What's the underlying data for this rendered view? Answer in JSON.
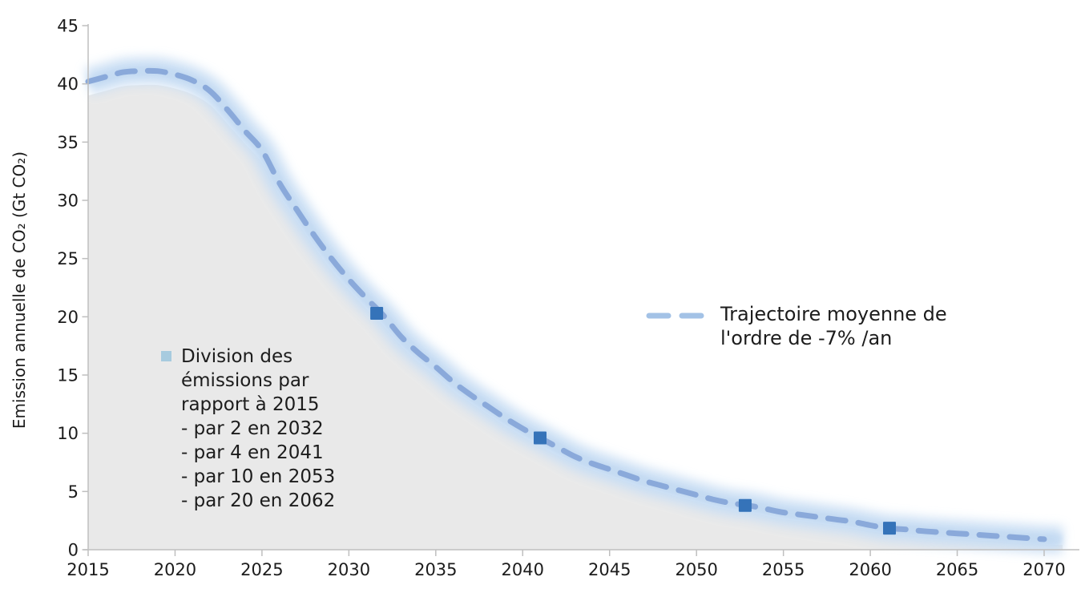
{
  "chart_data": {
    "type": "area",
    "title": "",
    "xlabel": "",
    "ylabel": "Emission annuelle de CO₂ (Gt CO₂)",
    "xlim": [
      2015,
      2070
    ],
    "ylim": [
      0,
      45
    ],
    "x_ticks": [
      2015,
      2020,
      2025,
      2030,
      2035,
      2040,
      2045,
      2050,
      2055,
      2060,
      2065,
      2070
    ],
    "y_ticks": [
      0,
      5,
      10,
      15,
      20,
      25,
      30,
      35,
      40,
      45
    ],
    "grid": false,
    "legend_position": "right-middle",
    "series": [
      {
        "name": "Trajectoire moyenne de l'ordre de -7% /an",
        "style": "dashed-line-with-glow",
        "x_start": 2015,
        "x_step": 1,
        "values": [
          40.2,
          40.6,
          41.0,
          41.1,
          41.1,
          40.8,
          40.3,
          39.4,
          37.8,
          36.0,
          34.3,
          31.5,
          29.2,
          27.0,
          25.0,
          23.2,
          21.6,
          20.1,
          18.3,
          16.9,
          15.7,
          14.4,
          13.3,
          12.3,
          11.3,
          10.4,
          9.6,
          8.8,
          8.0,
          7.4,
          6.9,
          6.4,
          5.9,
          5.5,
          5.1,
          4.7,
          4.3,
          4.0,
          3.8,
          3.5,
          3.2,
          3.0,
          2.8,
          2.6,
          2.4,
          2.1,
          1.85,
          1.75,
          1.6,
          1.5,
          1.4,
          1.3,
          1.2,
          1.1,
          1.0,
          0.9
        ]
      },
      {
        "name": "Emission annuelle (aire grisée)",
        "style": "area",
        "x_start": 2015,
        "x_step": 1,
        "values": [
          39.0,
          39.4,
          39.8,
          39.9,
          39.9,
          39.6,
          39.1,
          38.2,
          36.6,
          34.9,
          33.2,
          30.4,
          28.2,
          26.0,
          24.0,
          22.3,
          20.7,
          19.2,
          17.5,
          16.1,
          14.9,
          13.6,
          12.6,
          11.6,
          10.6,
          9.7,
          8.9,
          8.1,
          7.4,
          6.8,
          6.3,
          5.8,
          5.3,
          4.9,
          4.5,
          4.1,
          3.7,
          3.4,
          3.2,
          2.9,
          2.6,
          2.45,
          2.25,
          2.05,
          1.85,
          1.6,
          1.35,
          1.25,
          1.1,
          1.0,
          0.9,
          0.8,
          0.75,
          0.65,
          0.55,
          0.45
        ]
      }
    ],
    "markers": [
      {
        "year": 2031.6,
        "value": 20.3
      },
      {
        "year": 2041.0,
        "value": 9.6
      },
      {
        "year": 2052.8,
        "value": 3.8
      },
      {
        "year": 2061.1,
        "value": 1.85
      }
    ]
  },
  "legend": {
    "line1": "Trajectoire moyenne de",
    "line2": "l'ordre de -7% /an"
  },
  "annotation": {
    "lines": [
      "Division des",
      "émissions par",
      "rapport à 2015",
      "- par 2 en 2032",
      "- par 4 en 2041",
      "- par 10 en 2053",
      "- par 20 en 2062"
    ]
  },
  "colors": {
    "dash_line": "#8AA9DA",
    "glow_outer": "#CBDFF4",
    "glow_inner": "#BCD5F0",
    "marker": "#3573B9",
    "area_fill": "#E9E9E9",
    "axis": "#BFBFBF",
    "text": "#1C1C1C",
    "legend_swatch": "#A3C2E6",
    "annotation_bullet": "#A7CBDF"
  }
}
